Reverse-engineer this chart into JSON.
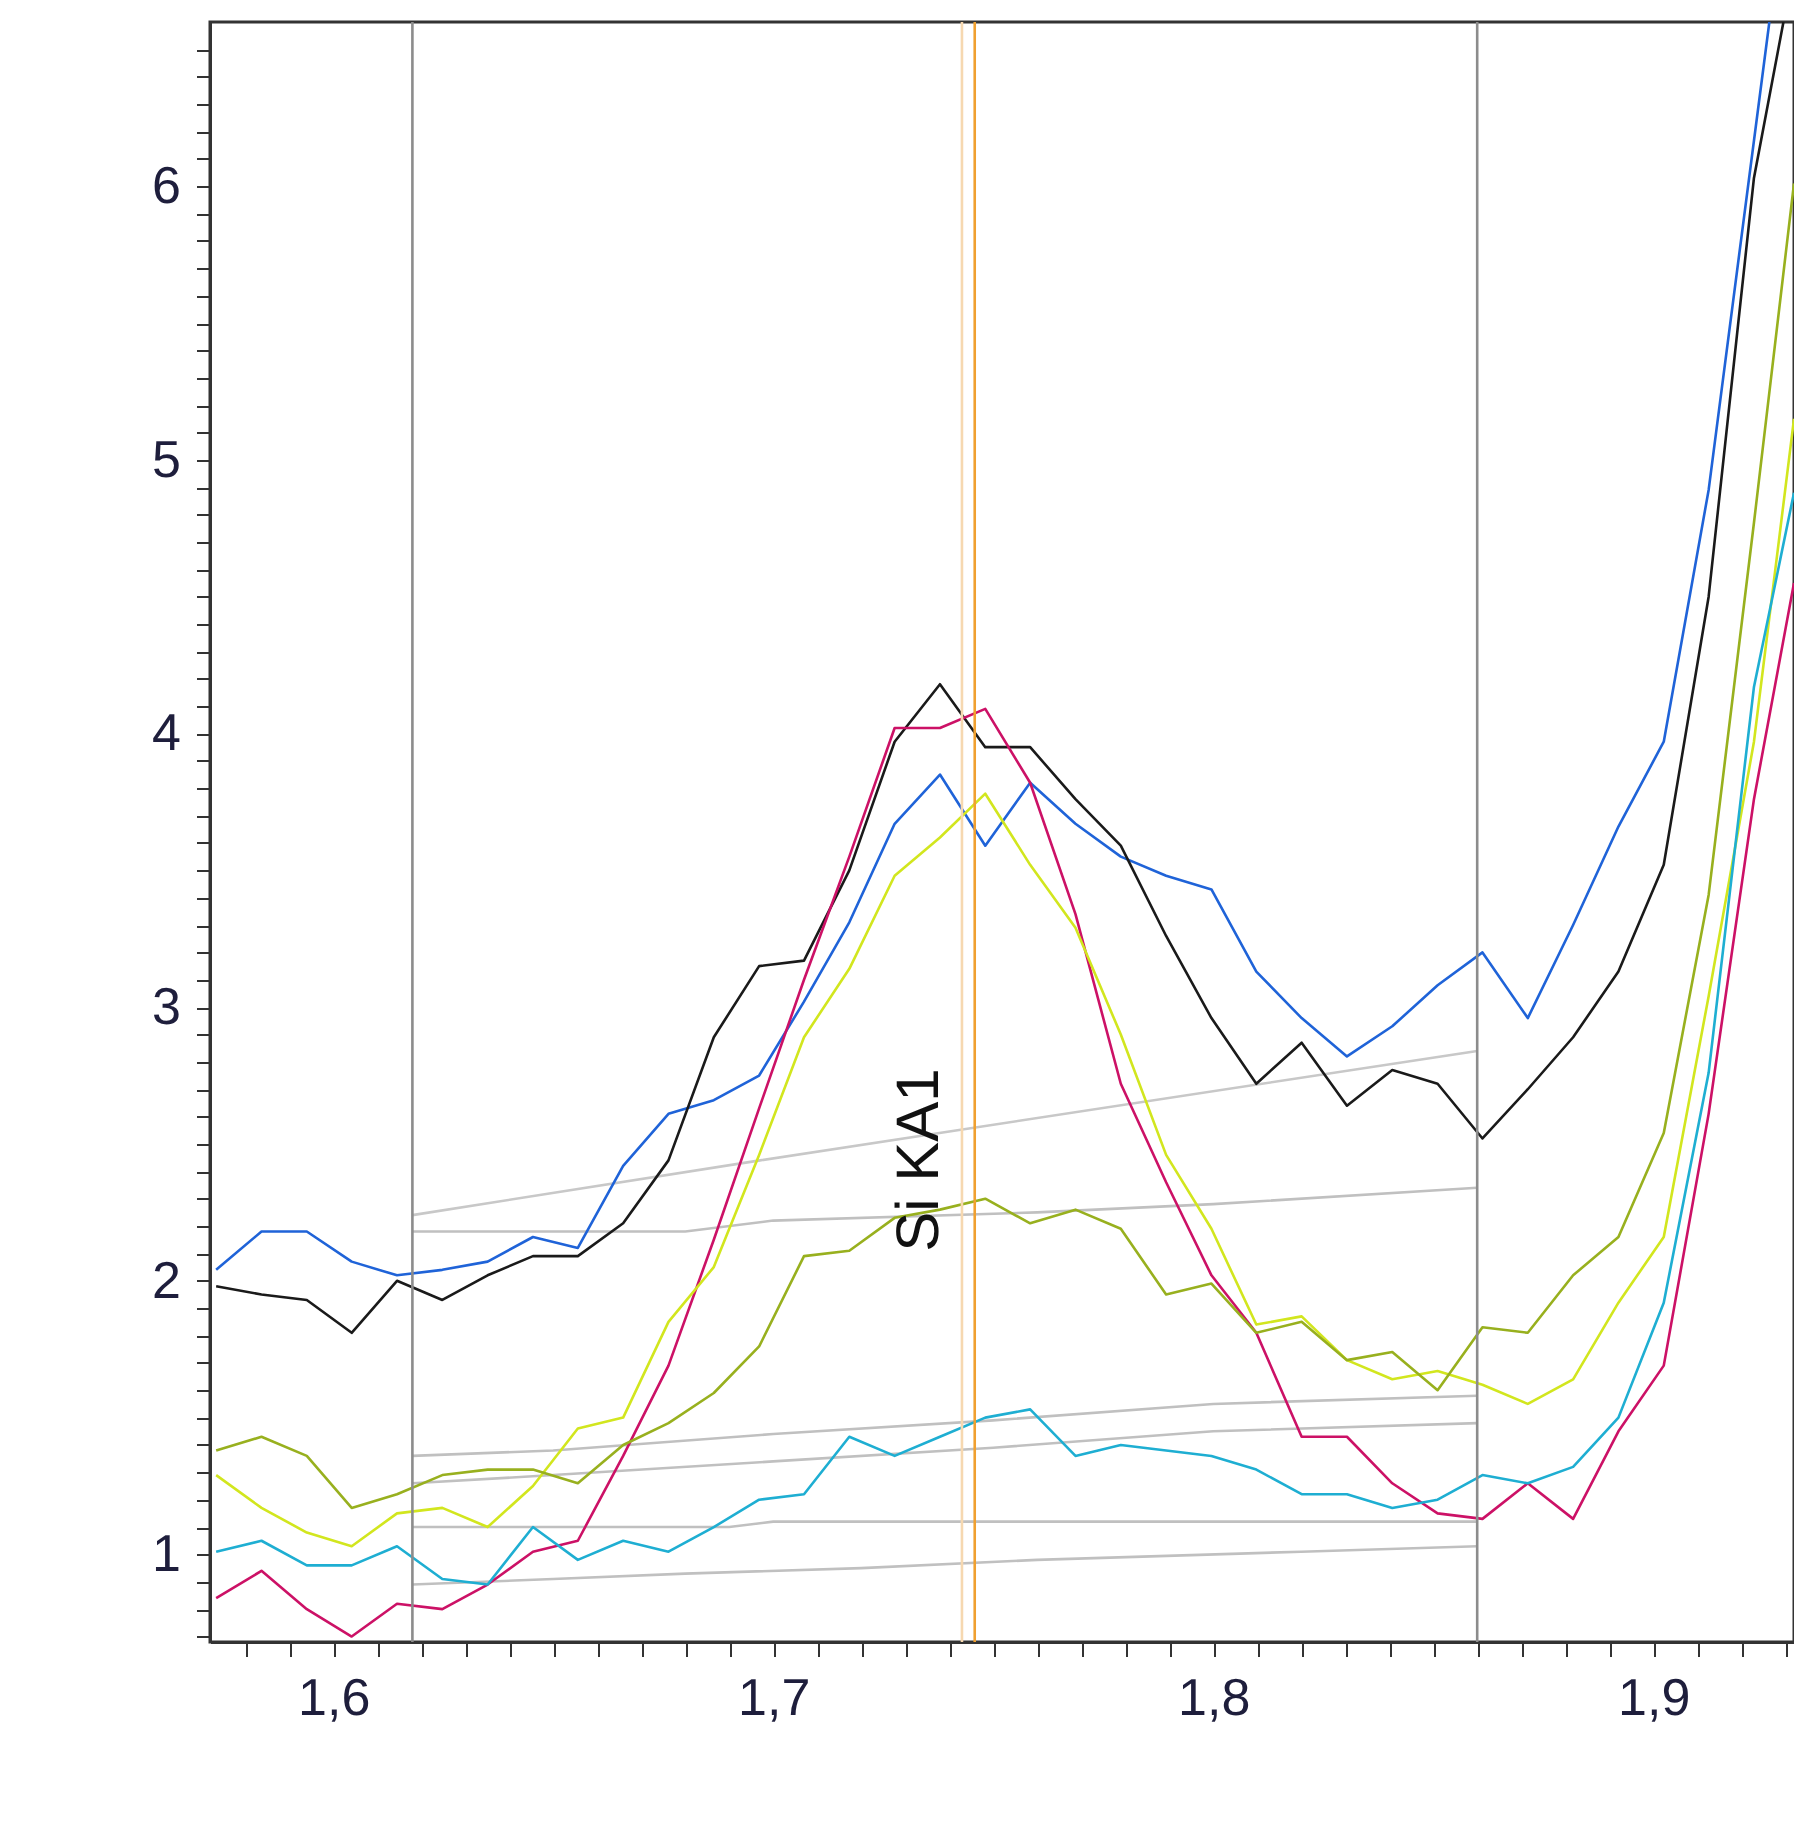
{
  "chart_data": {
    "type": "line",
    "xlim": [
      1.572,
      1.932
    ],
    "ylim": [
      0.68,
      6.6
    ],
    "xticks": [
      {
        "value": 1.58,
        "label": null
      },
      {
        "value": 1.59,
        "label": null
      },
      {
        "value": 1.6,
        "label": "1,6"
      },
      {
        "value": 1.61,
        "label": null
      },
      {
        "value": 1.62,
        "label": null
      },
      {
        "value": 1.63,
        "label": null
      },
      {
        "value": 1.64,
        "label": null
      },
      {
        "value": 1.65,
        "label": null
      },
      {
        "value": 1.66,
        "label": null
      },
      {
        "value": 1.67,
        "label": null
      },
      {
        "value": 1.68,
        "label": null
      },
      {
        "value": 1.69,
        "label": null
      },
      {
        "value": 1.7,
        "label": "1,7"
      },
      {
        "value": 1.71,
        "label": null
      },
      {
        "value": 1.72,
        "label": null
      },
      {
        "value": 1.73,
        "label": null
      },
      {
        "value": 1.74,
        "label": null
      },
      {
        "value": 1.75,
        "label": null
      },
      {
        "value": 1.76,
        "label": null
      },
      {
        "value": 1.77,
        "label": null
      },
      {
        "value": 1.78,
        "label": null
      },
      {
        "value": 1.79,
        "label": null
      },
      {
        "value": 1.8,
        "label": "1,8"
      },
      {
        "value": 1.81,
        "label": null
      },
      {
        "value": 1.82,
        "label": null
      },
      {
        "value": 1.83,
        "label": null
      },
      {
        "value": 1.84,
        "label": null
      },
      {
        "value": 1.85,
        "label": null
      },
      {
        "value": 1.86,
        "label": null
      },
      {
        "value": 1.87,
        "label": null
      },
      {
        "value": 1.88,
        "label": null
      },
      {
        "value": 1.89,
        "label": null
      },
      {
        "value": 1.9,
        "label": "1,9"
      },
      {
        "value": 1.91,
        "label": null
      },
      {
        "value": 1.92,
        "label": null
      },
      {
        "value": 1.93,
        "label": null
      }
    ],
    "yticks": [
      {
        "value": 0.7,
        "label": null
      },
      {
        "value": 0.8,
        "label": null
      },
      {
        "value": 0.9,
        "label": null
      },
      1,
      {
        "value": 1.1,
        "label": null
      },
      {
        "value": 1.2,
        "label": null
      },
      {
        "value": 1.3,
        "label": null
      },
      {
        "value": 1.4,
        "label": null
      },
      {
        "value": 1.5,
        "label": null
      },
      {
        "value": 1.6,
        "label": null
      },
      {
        "value": 1.7,
        "label": null
      },
      {
        "value": 1.8,
        "label": null
      },
      {
        "value": 1.9,
        "label": null
      },
      2,
      {
        "value": 2.1,
        "label": null
      },
      {
        "value": 2.2,
        "label": null
      },
      {
        "value": 2.3,
        "label": null
      },
      {
        "value": 2.4,
        "label": null
      },
      {
        "value": 2.5,
        "label": null
      },
      {
        "value": 2.6,
        "label": null
      },
      {
        "value": 2.7,
        "label": null
      },
      {
        "value": 2.8,
        "label": null
      },
      {
        "value": 2.9,
        "label": null
      },
      3,
      {
        "value": 3.1,
        "label": null
      },
      {
        "value": 3.2,
        "label": null
      },
      {
        "value": 3.3,
        "label": null
      },
      {
        "value": 3.4,
        "label": null
      },
      {
        "value": 3.5,
        "label": null
      },
      {
        "value": 3.6,
        "label": null
      },
      {
        "value": 3.7,
        "label": null
      },
      {
        "value": 3.8,
        "label": null
      },
      {
        "value": 3.9,
        "label": null
      },
      4,
      {
        "value": 4.1,
        "label": null
      },
      {
        "value": 4.2,
        "label": null
      },
      {
        "value": 4.3,
        "label": null
      },
      {
        "value": 4.4,
        "label": null
      },
      {
        "value": 4.5,
        "label": null
      },
      {
        "value": 4.6,
        "label": null
      },
      {
        "value": 4.7,
        "label": null
      },
      {
        "value": 4.8,
        "label": null
      },
      {
        "value": 4.9,
        "label": null
      },
      5,
      {
        "value": 5.1,
        "label": null
      },
      {
        "value": 5.2,
        "label": null
      },
      {
        "value": 5.3,
        "label": null
      },
      {
        "value": 5.4,
        "label": null
      },
      {
        "value": 5.5,
        "label": null
      },
      {
        "value": 5.6,
        "label": null
      },
      {
        "value": 5.7,
        "label": null
      },
      {
        "value": 5.8,
        "label": null
      },
      {
        "value": 5.9,
        "label": null
      },
      6,
      {
        "value": 6.1,
        "label": null
      },
      {
        "value": 6.2,
        "label": null
      },
      {
        "value": 6.3,
        "label": null
      },
      {
        "value": 6.4,
        "label": null
      },
      {
        "value": 6.5,
        "label": null
      }
    ],
    "line_style": "solid",
    "series": [
      {
        "color": "#c8c8c8",
        "x": [
          1.618,
          1.697,
          1.86
        ],
        "values": [
          2.24,
          2.44,
          2.84
        ]
      },
      {
        "color": "#c0c0c0",
        "x": [
          1.618,
          1.68,
          1.7,
          1.76,
          1.8,
          1.86
        ],
        "values": [
          2.18,
          2.18,
          2.22,
          2.25,
          2.28,
          2.34
        ]
      },
      {
        "color": "#c0c0c0",
        "x": [
          1.618,
          1.65,
          1.7,
          1.75,
          1.8,
          1.86
        ],
        "values": [
          1.36,
          1.38,
          1.44,
          1.49,
          1.55,
          1.58
        ]
      },
      {
        "color": "#c0c0c0",
        "x": [
          1.618,
          1.65,
          1.7,
          1.75,
          1.8,
          1.86
        ],
        "values": [
          1.26,
          1.29,
          1.34,
          1.39,
          1.45,
          1.48
        ]
      },
      {
        "color": "#c0c0c0",
        "x": [
          1.618,
          1.69,
          1.7,
          1.86
        ],
        "values": [
          1.1,
          1.1,
          1.12,
          1.12
        ]
      },
      {
        "color": "#c0c0c0",
        "x": [
          1.618,
          1.65,
          1.68,
          1.72,
          1.76,
          1.82,
          1.86
        ],
        "values": [
          0.89,
          0.91,
          0.93,
          0.95,
          0.98,
          1.01,
          1.03
        ]
      },
      {
        "color": "#1f63d8",
        "x": [
          1.5734,
          1.5837,
          1.594,
          1.6042,
          1.6145,
          1.6248,
          1.6351,
          1.6454,
          1.6556,
          1.6659,
          1.6762,
          1.6865,
          1.6968,
          1.707,
          1.7173,
          1.7276,
          1.7379,
          1.7482,
          1.7584,
          1.7687,
          1.779,
          1.7893,
          1.7996,
          1.8098,
          1.8201,
          1.8304,
          1.8407,
          1.851,
          1.8612,
          1.8715,
          1.8818,
          1.8921,
          1.9024,
          1.9126,
          1.9264
        ],
        "values": [
          2.04,
          2.18,
          2.18,
          2.07,
          2.02,
          2.04,
          2.07,
          2.16,
          2.12,
          2.42,
          2.61,
          2.66,
          2.75,
          3.02,
          3.31,
          3.67,
          3.85,
          3.59,
          3.82,
          3.67,
          3.55,
          3.48,
          3.43,
          3.13,
          2.96,
          2.82,
          2.93,
          3.08,
          3.2,
          2.96,
          3.3,
          3.66,
          3.97,
          4.89,
          6.6
        ]
      },
      {
        "color": "#1a1a1a",
        "x": [
          1.5734,
          1.5837,
          1.594,
          1.6042,
          1.6145,
          1.6248,
          1.6351,
          1.6454,
          1.6556,
          1.6659,
          1.6762,
          1.6865,
          1.6968,
          1.707,
          1.7173,
          1.7276,
          1.7379,
          1.7482,
          1.7584,
          1.7687,
          1.779,
          1.7893,
          1.7996,
          1.8098,
          1.8201,
          1.8304,
          1.8407,
          1.851,
          1.8612,
          1.8715,
          1.8818,
          1.8921,
          1.9024,
          1.9126,
          1.9229,
          1.9296
        ],
        "values": [
          1.98,
          1.95,
          1.93,
          1.81,
          2.0,
          1.93,
          2.02,
          2.09,
          2.09,
          2.21,
          2.44,
          2.89,
          3.15,
          3.17,
          3.5,
          3.97,
          4.18,
          3.95,
          3.95,
          3.76,
          3.59,
          3.26,
          2.96,
          2.72,
          2.87,
          2.64,
          2.77,
          2.72,
          2.52,
          2.7,
          2.89,
          3.13,
          3.52,
          4.5,
          6.03,
          6.6
        ]
      },
      {
        "color": "#cc1166",
        "x": [
          1.5734,
          1.5837,
          1.594,
          1.6042,
          1.6145,
          1.6248,
          1.6351,
          1.6454,
          1.6556,
          1.6659,
          1.6762,
          1.6865,
          1.6968,
          1.707,
          1.7173,
          1.7276,
          1.7379,
          1.7482,
          1.7584,
          1.7687,
          1.779,
          1.7893,
          1.7996,
          1.8098,
          1.8201,
          1.8304,
          1.8407,
          1.851,
          1.8612,
          1.8715,
          1.8818,
          1.8921,
          1.9024,
          1.9126,
          1.9229,
          1.932
        ],
        "values": [
          0.84,
          0.94,
          0.8,
          0.7,
          0.82,
          0.8,
          0.89,
          1.01,
          1.05,
          1.36,
          1.69,
          2.15,
          2.63,
          3.1,
          3.55,
          4.02,
          4.02,
          4.09,
          3.82,
          3.34,
          2.72,
          2.36,
          2.02,
          1.81,
          1.43,
          1.43,
          1.26,
          1.15,
          1.13,
          1.26,
          1.13,
          1.45,
          1.69,
          2.61,
          3.76,
          4.55
        ]
      },
      {
        "color": "#d2e61e",
        "x": [
          1.5734,
          1.5837,
          1.594,
          1.6042,
          1.6145,
          1.6248,
          1.6351,
          1.6454,
          1.6556,
          1.6659,
          1.6762,
          1.6865,
          1.6968,
          1.707,
          1.7173,
          1.7276,
          1.7379,
          1.7482,
          1.7584,
          1.7687,
          1.779,
          1.7893,
          1.7996,
          1.8098,
          1.8201,
          1.8304,
          1.8407,
          1.851,
          1.8612,
          1.8715,
          1.8818,
          1.8921,
          1.9024,
          1.9126,
          1.9229,
          1.932
        ],
        "values": [
          1.29,
          1.17,
          1.08,
          1.03,
          1.15,
          1.17,
          1.1,
          1.25,
          1.46,
          1.5,
          1.85,
          2.05,
          2.46,
          2.89,
          3.14,
          3.48,
          3.62,
          3.78,
          3.52,
          3.29,
          2.9,
          2.46,
          2.19,
          1.84,
          1.87,
          1.71,
          1.64,
          1.67,
          1.62,
          1.55,
          1.64,
          1.92,
          2.16,
          3.04,
          3.97,
          5.15
        ]
      },
      {
        "color": "#98b01e",
        "x": [
          1.5734,
          1.5837,
          1.594,
          1.6042,
          1.6145,
          1.6248,
          1.6351,
          1.6454,
          1.6556,
          1.6659,
          1.6762,
          1.6865,
          1.6968,
          1.707,
          1.7173,
          1.7276,
          1.7379,
          1.7482,
          1.7584,
          1.7687,
          1.779,
          1.7893,
          1.7996,
          1.8098,
          1.8201,
          1.8304,
          1.8407,
          1.851,
          1.8612,
          1.8715,
          1.8818,
          1.8921,
          1.9024,
          1.9126,
          1.9229,
          1.932
        ],
        "values": [
          1.38,
          1.43,
          1.36,
          1.17,
          1.22,
          1.29,
          1.31,
          1.31,
          1.26,
          1.4,
          1.48,
          1.59,
          1.76,
          2.09,
          2.11,
          2.23,
          2.26,
          2.3,
          2.21,
          2.26,
          2.19,
          1.95,
          1.99,
          1.81,
          1.85,
          1.71,
          1.74,
          1.6,
          1.83,
          1.81,
          2.02,
          2.16,
          2.54,
          3.41,
          4.77,
          6.01
        ]
      },
      {
        "color": "#1eaed2",
        "x": [
          1.5734,
          1.5837,
          1.594,
          1.6042,
          1.6145,
          1.6248,
          1.6351,
          1.6454,
          1.6556,
          1.6659,
          1.6762,
          1.6865,
          1.6968,
          1.707,
          1.7173,
          1.7276,
          1.7379,
          1.7482,
          1.7584,
          1.7687,
          1.779,
          1.7893,
          1.7996,
          1.8098,
          1.8201,
          1.8304,
          1.8407,
          1.851,
          1.8612,
          1.8715,
          1.8818,
          1.8921,
          1.9024,
          1.9126,
          1.9229,
          1.932
        ],
        "values": [
          1.01,
          1.05,
          0.96,
          0.96,
          1.03,
          0.91,
          0.89,
          1.1,
          0.98,
          1.05,
          1.01,
          1.1,
          1.2,
          1.22,
          1.43,
          1.36,
          1.43,
          1.5,
          1.53,
          1.36,
          1.4,
          1.38,
          1.36,
          1.31,
          1.22,
          1.22,
          1.17,
          1.2,
          1.29,
          1.26,
          1.32,
          1.5,
          1.92,
          2.76,
          4.17,
          4.88
        ]
      }
    ],
    "ref_lines": [
      {
        "axis": "x",
        "value": 1.618,
        "color": "#8c8c8c"
      },
      {
        "axis": "x",
        "value": 1.86,
        "color": "#8c8c8c"
      },
      {
        "axis": "x",
        "value": 1.7429,
        "color": "#f6d8b0"
      },
      {
        "axis": "x",
        "value": 1.7458,
        "color": "#f0a030"
      }
    ],
    "annotations": [
      "Si KA1"
    ]
  }
}
